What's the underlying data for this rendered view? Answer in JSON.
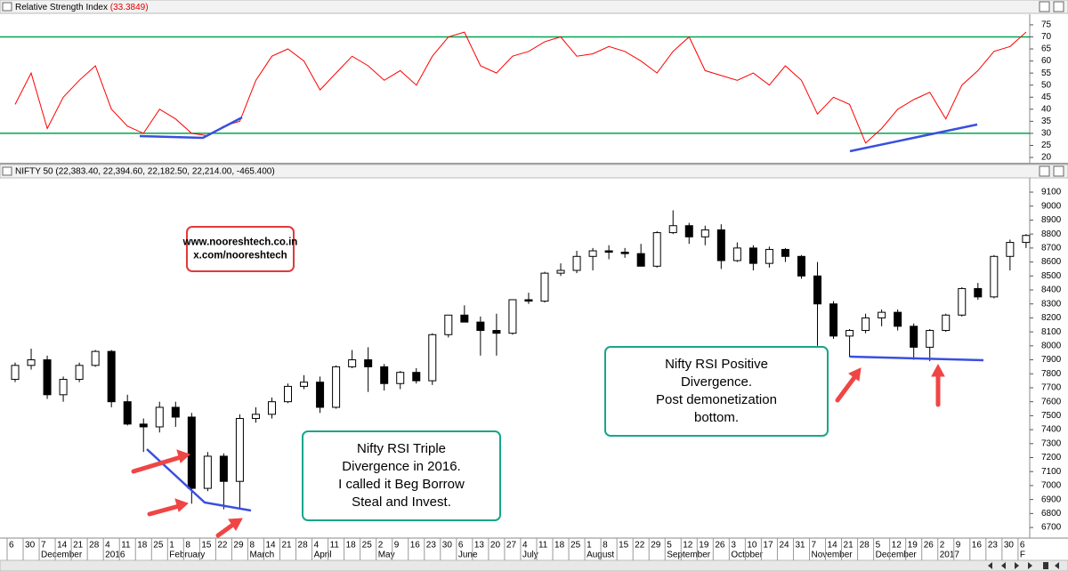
{
  "chart_data": [
    {
      "type": "line",
      "title": "Relative Strength Index",
      "subtitle": "(33.3849)",
      "color": "#ff0000",
      "values": [
        42,
        55,
        32,
        45,
        52,
        58,
        40,
        33,
        30,
        40,
        36,
        30,
        29,
        33,
        35,
        52,
        62,
        65,
        60,
        48,
        55,
        62,
        58,
        52,
        56,
        50,
        62,
        70,
        72,
        58,
        55,
        62,
        64,
        68,
        70,
        62,
        63,
        66,
        64,
        60,
        55,
        64,
        70,
        56,
        54,
        52,
        55,
        50,
        58,
        52,
        38,
        45,
        42,
        26,
        32,
        40,
        44,
        47,
        36,
        50,
        56,
        64,
        66,
        72
      ],
      "ylim": [
        17.8,
        79.4
      ],
      "yticks": [
        20,
        25,
        30,
        35,
        40,
        45,
        50,
        55,
        60,
        65,
        70,
        75
      ],
      "reference_lines": [
        30,
        70
      ],
      "reference_color": "#00a651"
    },
    {
      "type": "candlestick",
      "title": "NIFTY 50 (22,383.40, 22,394.60, 22,182.50, 22,214.00, -465.400)",
      "categories": [
        "6",
        "30",
        "7",
        "14",
        "21",
        "28",
        "4",
        "11",
        "18",
        "25",
        "1",
        "8",
        "15",
        "22",
        "29",
        "8",
        "14",
        "21",
        "28",
        "4",
        "11",
        "18",
        "25",
        "2",
        "9",
        "16",
        "23",
        "30",
        "6",
        "13",
        "20",
        "27",
        "4",
        "11",
        "18",
        "25",
        "1",
        "8",
        "15",
        "22",
        "29",
        "5",
        "12",
        "19",
        "26",
        "3",
        "10",
        "17",
        "24",
        "31",
        "7",
        "14",
        "21",
        "28",
        "5",
        "12",
        "19",
        "26",
        "2",
        "9",
        "16",
        "23",
        "30",
        "6"
      ],
      "month_labels": [
        null,
        null,
        "December",
        null,
        null,
        null,
        "2016",
        null,
        null,
        null,
        "February",
        null,
        null,
        null,
        null,
        "March",
        null,
        null,
        null,
        "April",
        null,
        null,
        null,
        "May",
        null,
        null,
        null,
        null,
        "June",
        null,
        null,
        null,
        "July",
        null,
        null,
        null,
        "August",
        null,
        null,
        null,
        null,
        "September",
        null,
        null,
        null,
        "October",
        null,
        null,
        null,
        null,
        "November",
        null,
        null,
        null,
        "December",
        null,
        null,
        null,
        "2017",
        null,
        null,
        null,
        null,
        "F"
      ],
      "open": [
        7760,
        7860,
        7900,
        7650,
        7760,
        7860,
        7960,
        7600,
        7440,
        7420,
        7560,
        7490,
        6980,
        7210,
        7030,
        7480,
        7510,
        7600,
        7710,
        7740,
        7560,
        7850,
        7900,
        7850,
        7730,
        7810,
        7750,
        8080,
        8220,
        8170,
        8110,
        8090,
        8330,
        8320,
        8520,
        8540,
        8640,
        8680,
        8670,
        8660,
        8570,
        8810,
        8860,
        8780,
        8830,
        8610,
        8700,
        8590,
        8690,
        8640,
        8500,
        8300,
        8070,
        8110,
        8200,
        8240,
        8140,
        7990,
        8110,
        8220,
        8410,
        8350,
        8640,
        8740
      ],
      "high": [
        7880,
        7980,
        7930,
        7780,
        7880,
        7970,
        7970,
        7650,
        7480,
        7600,
        7600,
        7520,
        7240,
        7230,
        7510,
        7560,
        7630,
        7730,
        7790,
        7780,
        7860,
        7970,
        7990,
        7870,
        7820,
        7840,
        8090,
        8220,
        8290,
        8210,
        8230,
        8330,
        8380,
        8530,
        8590,
        8680,
        8700,
        8720,
        8700,
        8730,
        8820,
        8970,
        8880,
        8860,
        8870,
        8740,
        8720,
        8710,
        8700,
        8650,
        8600,
        8320,
        8120,
        8230,
        8260,
        8260,
        8160,
        8120,
        8230,
        8420,
        8450,
        8650,
        8760,
        8800
      ],
      "low": [
        7740,
        7830,
        7620,
        7600,
        7740,
        7850,
        7560,
        7430,
        7240,
        7380,
        7420,
        6870,
        6960,
        6830,
        6830,
        7450,
        7480,
        7590,
        7690,
        7520,
        7550,
        7840,
        7670,
        7680,
        7690,
        7730,
        7720,
        8060,
        8170,
        7930,
        7930,
        8080,
        8300,
        8310,
        8500,
        8520,
        8540,
        8620,
        8630,
        8590,
        8560,
        8800,
        8730,
        8720,
        8550,
        8600,
        8540,
        8560,
        8600,
        8480,
        8000,
        8050,
        7920,
        8090,
        8140,
        8110,
        7900,
        7890,
        8100,
        8210,
        8330,
        8340,
        8540,
        8700
      ],
      "close": [
        7860,
        7900,
        7650,
        7760,
        7860,
        7960,
        7600,
        7440,
        7420,
        7560,
        7490,
        6980,
        7210,
        7030,
        7480,
        7510,
        7600,
        7710,
        7740,
        7560,
        7850,
        7900,
        7850,
        7730,
        7810,
        7750,
        8080,
        8220,
        8170,
        8110,
        8090,
        8330,
        8320,
        8520,
        8540,
        8640,
        8680,
        8670,
        8660,
        8570,
        8810,
        8860,
        8780,
        8830,
        8610,
        8700,
        8590,
        8690,
        8640,
        8500,
        8300,
        8070,
        8110,
        8200,
        8240,
        8140,
        7990,
        8110,
        8220,
        8410,
        8350,
        8640,
        8740,
        8790
      ],
      "ylim": [
        6624,
        9202
      ],
      "yticks": [
        6700,
        6800,
        6900,
        7000,
        7100,
        7200,
        7300,
        7400,
        7500,
        7600,
        7700,
        7800,
        7900,
        8000,
        8100,
        8200,
        8300,
        8400,
        8500,
        8600,
        8700,
        8800,
        8900,
        9000,
        9100
      ],
      "annotations": [
        {
          "lines": [
            "www.nooreshtech.co.in",
            "x.com/nooreshtech"
          ],
          "border": "#e03a3a"
        },
        {
          "lines": [
            "Nifty RSI Triple",
            "Divergence in 2016.",
            "I called it Beg Borrow",
            "Steal and Invest."
          ],
          "border": "#1aa58a"
        },
        {
          "lines": [
            "Nifty RSI Positive",
            "Divergence.",
            "Post demonetization",
            "bottom."
          ],
          "border": "#1aa58a"
        }
      ]
    }
  ]
}
